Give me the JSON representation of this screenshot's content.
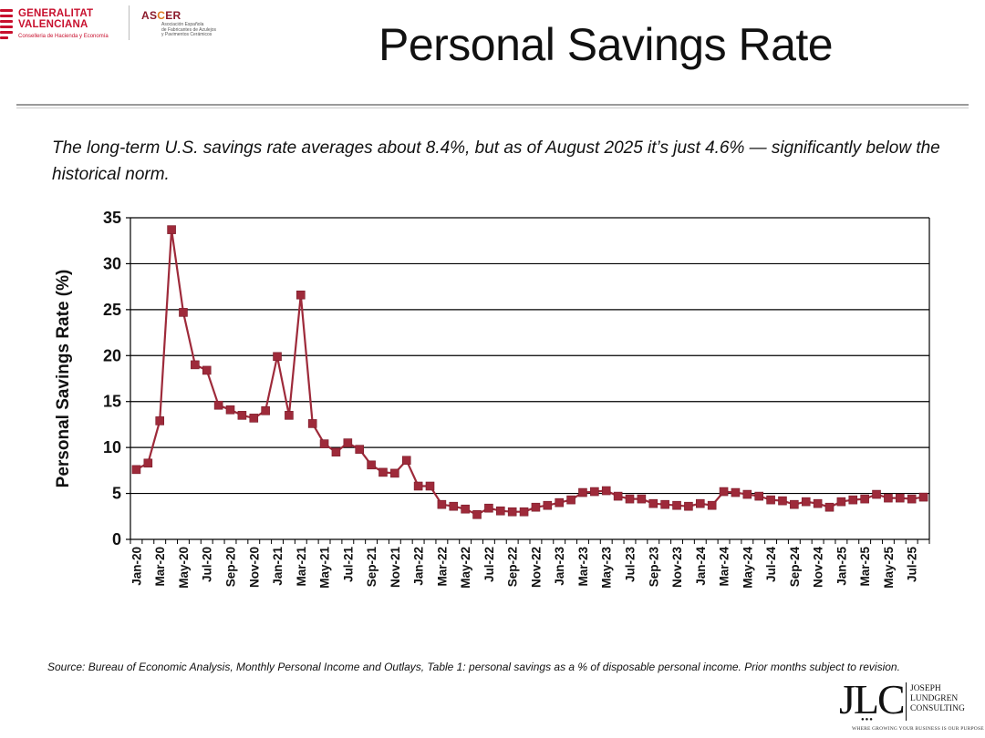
{
  "header": {
    "logo_generalitat": {
      "line1": "GENERALITAT",
      "line2": "VALENCIANA",
      "sub": "Conselleria de Hacienda y Economía"
    },
    "logo_ascer": {
      "name_prefix": "AS",
      "name_accent": "C",
      "name_suffix": "ER",
      "sub1": "Asociación Española",
      "sub2": "de Fabricantes de Azulejos",
      "sub3": "y Pavimentos Cerámicos"
    },
    "title": "Personal Savings Rate",
    "subtitle": "The long-term U.S. savings rate averages about 8.4%, but as of August 2025 it’s just 4.6% — significantly below the historical norm."
  },
  "footer": {
    "source": "Source: Bureau of Economic Analysis, Monthly Personal Income and Outlays, Table 1: personal savings as a % of disposable personal income. Prior months subject to revision.",
    "logo_jlc": {
      "mark": "JLC",
      "line1": "JOSEPH",
      "line2": "LUNDGREN",
      "line3": "CONSULTING",
      "tagline": "WHERE GROWING YOUR BUSINESS IS OUR PURPOSE"
    }
  },
  "colors": {
    "series": "#9e2a3a",
    "grid": "#000000",
    "text": "#111111",
    "gv_red": "#c8102e"
  },
  "chart_data": {
    "type": "line",
    "title": "",
    "xlabel": "",
    "ylabel": "Personal Savings Rate (%)",
    "ylim": [
      0,
      35
    ],
    "yticks": [
      0,
      5,
      10,
      15,
      20,
      25,
      30,
      35
    ],
    "grid": true,
    "x": [
      "Jan-20",
      "Feb-20",
      "Mar-20",
      "Apr-20",
      "May-20",
      "Jun-20",
      "Jul-20",
      "Aug-20",
      "Sep-20",
      "Oct-20",
      "Nov-20",
      "Dec-20",
      "Jan-21",
      "Feb-21",
      "Mar-21",
      "Apr-21",
      "May-21",
      "Jun-21",
      "Jul-21",
      "Aug-21",
      "Sep-21",
      "Oct-21",
      "Nov-21",
      "Dec-21",
      "Jan-22",
      "Feb-22",
      "Mar-22",
      "Apr-22",
      "May-22",
      "Jun-22",
      "Jul-22",
      "Aug-22",
      "Sep-22",
      "Oct-22",
      "Nov-22",
      "Dec-22",
      "Jan-23",
      "Feb-23",
      "Mar-23",
      "Apr-23",
      "May-23",
      "Jun-23",
      "Jul-23",
      "Aug-23",
      "Sep-23",
      "Oct-23",
      "Nov-23",
      "Dec-23",
      "Jan-24",
      "Feb-24",
      "Mar-24",
      "Apr-24",
      "May-24",
      "Jun-24",
      "Jul-24",
      "Aug-24",
      "Sep-24",
      "Oct-24",
      "Nov-24",
      "Dec-24",
      "Jan-25",
      "Feb-25",
      "Mar-25",
      "Apr-25",
      "May-25",
      "Jun-25",
      "Jul-25",
      "Aug-25"
    ],
    "x_tick_labels": [
      "Jan-20",
      "Mar-20",
      "May-20",
      "Jul-20",
      "Sep-20",
      "Nov-20",
      "Jan-21",
      "Mar-21",
      "May-21",
      "Jul-21",
      "Sep-21",
      "Nov-21",
      "Jan-22",
      "Mar-22",
      "May-22",
      "Jul-22",
      "Sep-22",
      "Nov-22",
      "Jan-23",
      "Mar-23",
      "May-23",
      "Jul-23",
      "Sep-23",
      "Nov-23",
      "Jan-24",
      "Mar-24",
      "May-24",
      "Jul-24",
      "Sep-24",
      "Nov-24",
      "Jan-25",
      "Mar-25",
      "May-25",
      "Jul-25"
    ],
    "series": [
      {
        "name": "Personal Savings Rate (%)",
        "values": [
          7.6,
          8.3,
          12.9,
          33.7,
          24.7,
          19.0,
          18.4,
          14.6,
          14.1,
          13.5,
          13.2,
          14.0,
          19.9,
          13.5,
          26.6,
          12.6,
          10.4,
          9.5,
          10.5,
          9.8,
          8.1,
          7.3,
          7.2,
          8.6,
          5.8,
          5.8,
          3.8,
          3.6,
          3.3,
          2.7,
          3.4,
          3.1,
          3.0,
          3.0,
          3.5,
          3.7,
          4.0,
          4.3,
          5.1,
          5.2,
          5.3,
          4.7,
          4.4,
          4.4,
          3.9,
          3.8,
          3.7,
          3.6,
          3.9,
          3.7,
          5.2,
          5.1,
          4.9,
          4.7,
          4.3,
          4.2,
          3.8,
          4.1,
          3.9,
          3.5,
          4.1,
          4.3,
          4.4,
          4.9,
          4.5,
          4.5,
          4.4,
          4.6
        ]
      }
    ]
  }
}
